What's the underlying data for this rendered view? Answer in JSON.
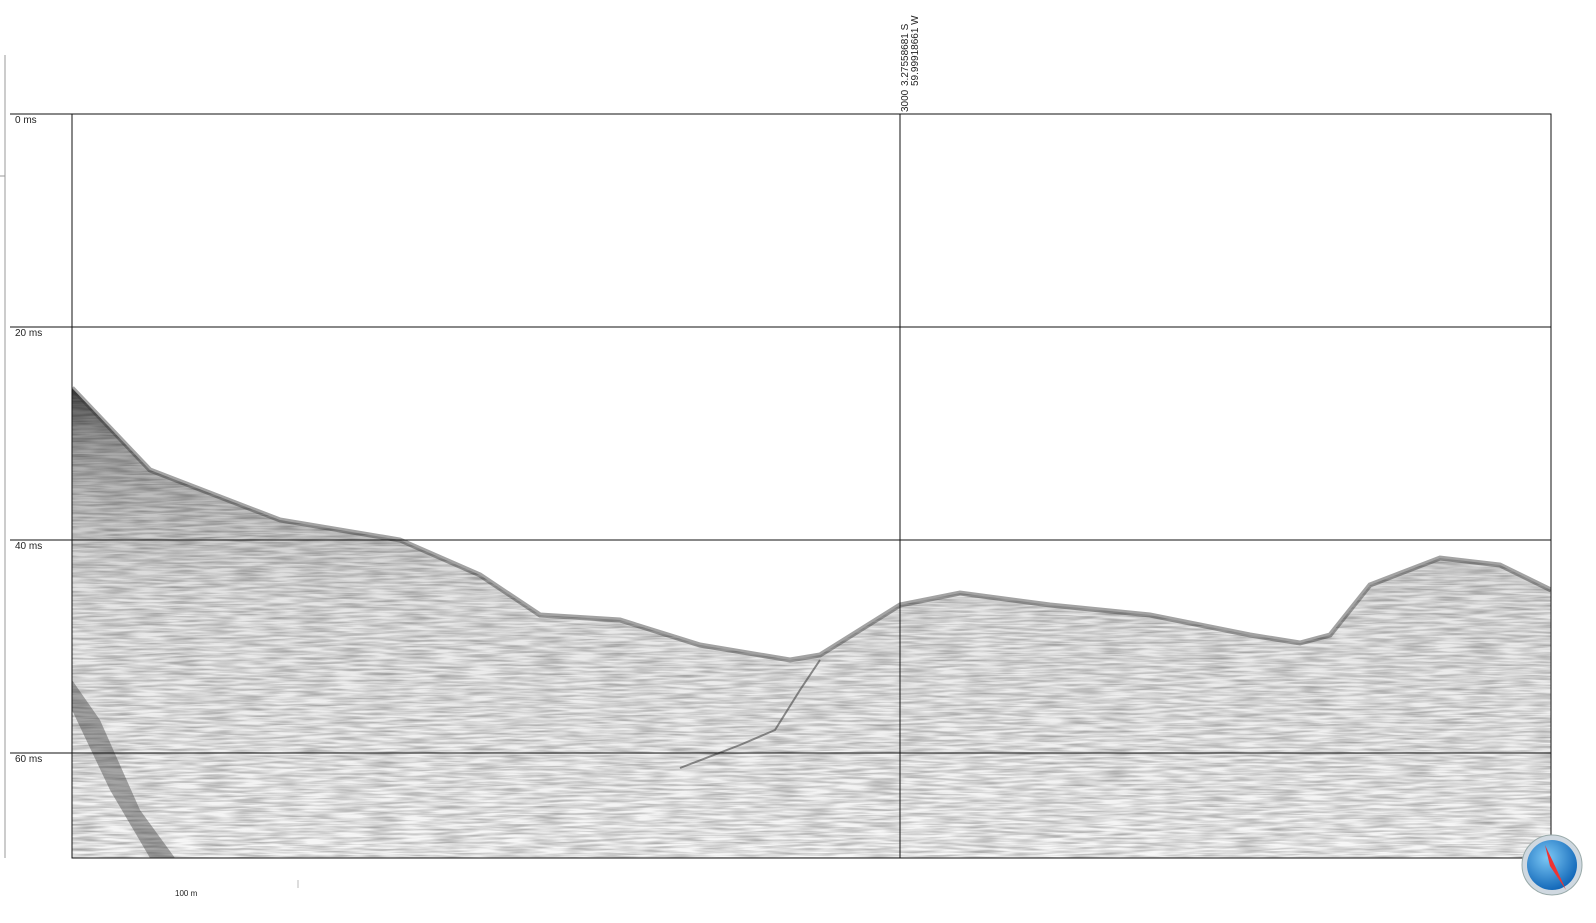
{
  "axis": {
    "labels": [
      "0 ms",
      "20 ms",
      "40 ms",
      "60 ms"
    ]
  },
  "marker": {
    "trace": "3000",
    "latitude": "3.27558681 S",
    "longitude": "59.99918661 W"
  },
  "scale_bar": {
    "label": "100 m"
  }
}
